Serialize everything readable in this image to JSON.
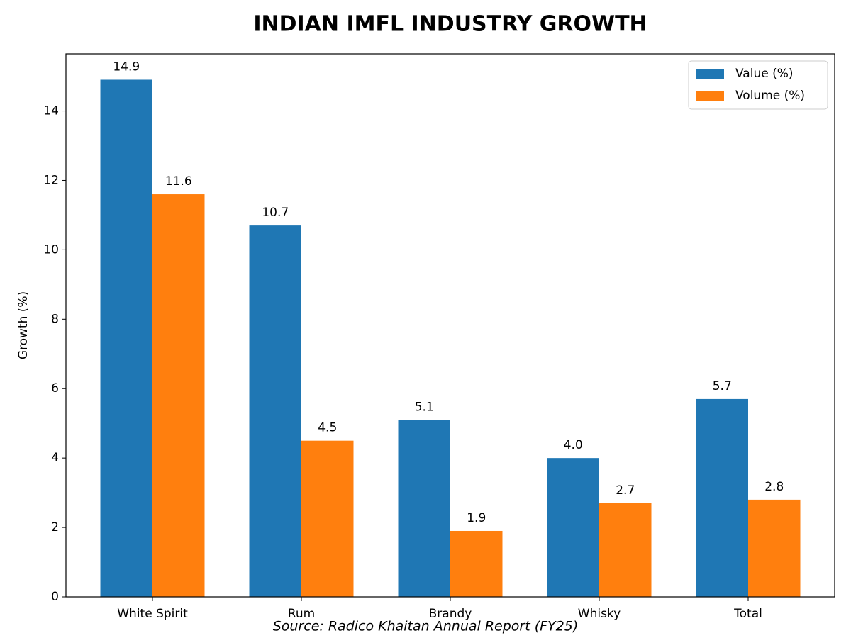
{
  "chart_data": {
    "type": "bar",
    "title": "INDIAN IMFL INDUSTRY GROWTH",
    "y_label": "Growth (%)",
    "source": "Source: Radico Khaitan Annual Report (FY25)",
    "categories": [
      "White Spirit",
      "Rum",
      "Brandy",
      "Whisky",
      "Total"
    ],
    "series": [
      {
        "name": "Value (%)",
        "color": "#1f77b4",
        "values": [
          14.9,
          10.7,
          5.1,
          4.0,
          5.7
        ],
        "value_labels": [
          "14.9",
          "10.7",
          "5.1",
          "4.0",
          "5.7"
        ]
      },
      {
        "name": "Volume (%)",
        "color": "#ff7f0e",
        "values": [
          11.6,
          4.5,
          1.9,
          2.7,
          2.8
        ],
        "value_labels": [
          "11.6",
          "4.5",
          "1.9",
          "2.7",
          "2.8"
        ]
      }
    ],
    "ylim": [
      0,
      15.645
    ],
    "yticks": [
      0,
      2,
      4,
      6,
      8,
      10,
      12,
      14
    ],
    "legend": "upper-right"
  }
}
